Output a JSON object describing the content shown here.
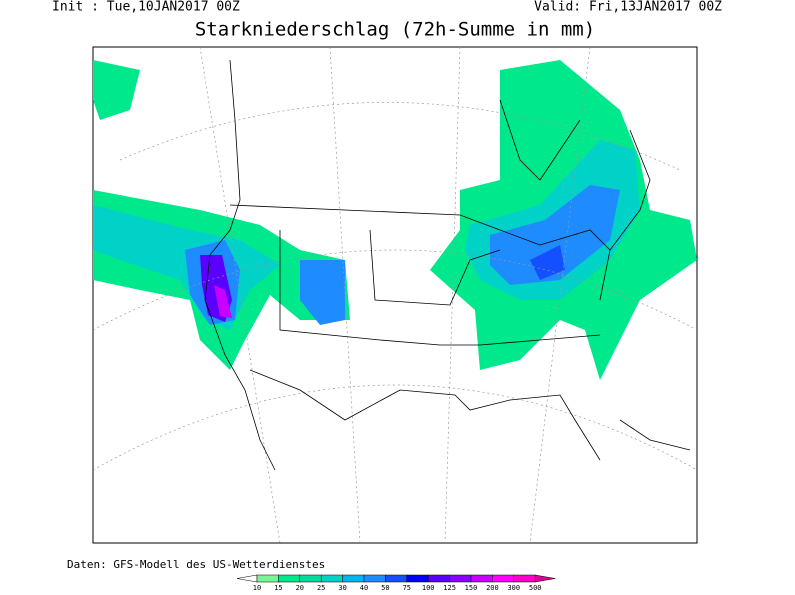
{
  "header": {
    "init": "Init : Tue,10JAN2017 00Z",
    "valid": "Valid: Fri,13JAN2017 00Z",
    "title": "Starkniederschlag (72h-Summe in mm)"
  },
  "footer": {
    "source": "Daten: GFS-Modell des US-Wetterdienstes"
  },
  "legend": {
    "labels": [
      10,
      15,
      20,
      25,
      30,
      40,
      50,
      75,
      100,
      125,
      150,
      200,
      300,
      500
    ],
    "colors": [
      "#ffffff",
      "#78f596",
      "#00e88c",
      "#00dca0",
      "#00d2c8",
      "#00b4f0",
      "#1e8cff",
      "#1450ff",
      "#0000ff",
      "#5a00ff",
      "#8c00ff",
      "#c800ff",
      "#ff00ff",
      "#ff00c8",
      "#dc0096"
    ]
  }
}
